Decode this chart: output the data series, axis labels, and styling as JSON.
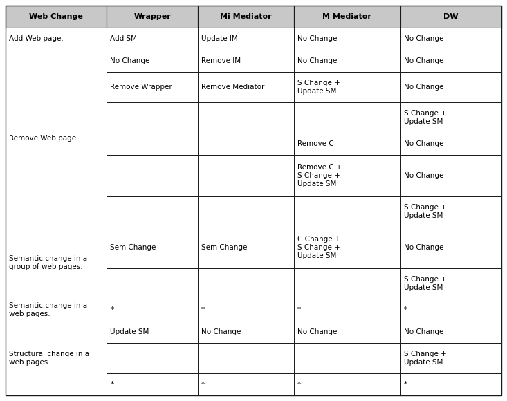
{
  "headers": [
    "Web Change",
    "Wrapper",
    "Mi Mediator",
    "M Mediator",
    "DW"
  ],
  "col_ratios": [
    0.195,
    0.175,
    0.185,
    0.205,
    0.195
  ],
  "header_bg": "#c8c8c8",
  "cell_bg": "#ffffff",
  "border_color": "#1a1a1a",
  "text_color": "#000000",
  "header_fontsize": 8.0,
  "cell_fontsize": 7.5,
  "rows": [
    {
      "web_change": "Add Web page.",
      "sub_rows": [
        {
          "wrapper": "Add SM",
          "mi_med": "Update IM",
          "m_med": "No Change",
          "dw": "No Change"
        }
      ]
    },
    {
      "web_change": "Remove Web page.",
      "sub_rows": [
        {
          "wrapper": "No Change",
          "mi_med": "Remove IM",
          "m_med": "No Change",
          "dw": "No Change"
        },
        {
          "wrapper": "Remove Wrapper",
          "mi_med": "Remove Mediator",
          "m_med": "S Change +\nUpdate SM",
          "dw": "No Change"
        },
        {
          "wrapper": "",
          "mi_med": "",
          "m_med": "",
          "dw": "S Change +\nUpdate SM"
        },
        {
          "wrapper": "",
          "mi_med": "",
          "m_med": "Remove C",
          "dw": "No Change"
        },
        {
          "wrapper": "",
          "mi_med": "",
          "m_med": "Remove C +\nS Change +\nUpdate SM",
          "dw": "No Change"
        },
        {
          "wrapper": "",
          "mi_med": "",
          "m_med": "",
          "dw": "S Change +\nUpdate SM"
        }
      ]
    },
    {
      "web_change": "Semantic change in a\ngroup of web pages.",
      "sub_rows": [
        {
          "wrapper": "Sem Change",
          "mi_med": "Sem Change",
          "m_med": "C Change +\nS Change +\nUpdate SM",
          "dw": "No Change"
        },
        {
          "wrapper": "",
          "mi_med": "",
          "m_med": "",
          "dw": "S Change +\nUpdate SM"
        }
      ]
    },
    {
      "web_change": "Semantic change in a\nweb pages.",
      "sub_rows": [
        {
          "wrapper": "*",
          "mi_med": "*",
          "m_med": "*",
          "dw": "*"
        }
      ]
    },
    {
      "web_change": "Structural change in a\nweb pages.",
      "sub_rows": [
        {
          "wrapper": "Update SM",
          "mi_med": "No Change",
          "m_med": "No Change",
          "dw": "No Change"
        },
        {
          "wrapper": "",
          "mi_med": "",
          "m_med": "",
          "dw": "S Change +\nUpdate SM"
        },
        {
          "wrapper": "*",
          "mi_med": "*",
          "m_med": "*",
          "dw": "*"
        }
      ]
    }
  ]
}
